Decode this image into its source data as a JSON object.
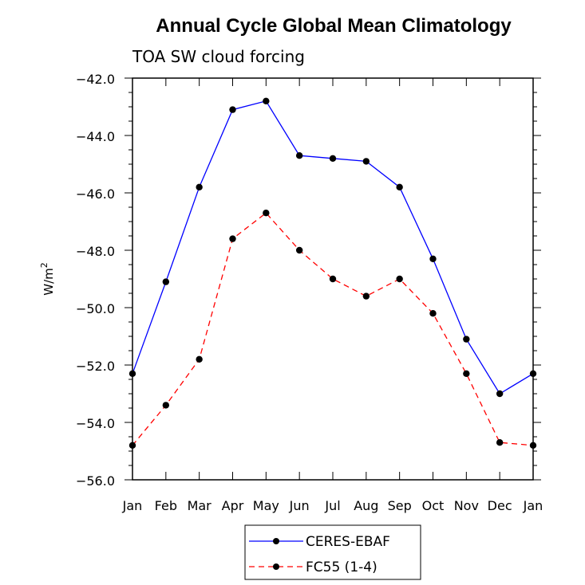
{
  "chart_data": {
    "type": "line",
    "title": "Annual Cycle Global Mean Climatology",
    "subtitle": "TOA SW cloud forcing",
    "ylabel": "W/m",
    "ylabel_superscript": "2",
    "xlabel": "",
    "categories": [
      "Jan",
      "Feb",
      "Mar",
      "Apr",
      "May",
      "Jun",
      "Jul",
      "Aug",
      "Sep",
      "Oct",
      "Nov",
      "Dec",
      "Jan"
    ],
    "ylim": [
      -56.0,
      -42.0
    ],
    "yticks": [
      "-56.0",
      "-54.0",
      "-52.0",
      "-50.0",
      "-48.0",
      "-46.0",
      "-44.0",
      "-42.0"
    ],
    "series": [
      {
        "name": "CERES-EBAF",
        "color": "#0000ff",
        "dash": "solid",
        "values": [
          -52.3,
          -49.1,
          -45.8,
          -43.1,
          -42.8,
          -44.7,
          -44.8,
          -44.9,
          -45.8,
          -48.3,
          -51.1,
          -53.0,
          -52.3
        ]
      },
      {
        "name": "FC55 (1-4)",
        "color": "#ff0000",
        "dash": "dashed",
        "values": [
          -54.8,
          -53.4,
          -51.8,
          -47.6,
          -46.7,
          -48.0,
          -49.0,
          -49.6,
          -49.0,
          -50.2,
          -52.3,
          -54.7,
          -54.8
        ]
      }
    ],
    "marker_color": "#000000",
    "grid": false,
    "legend_position": "bottom-center"
  }
}
